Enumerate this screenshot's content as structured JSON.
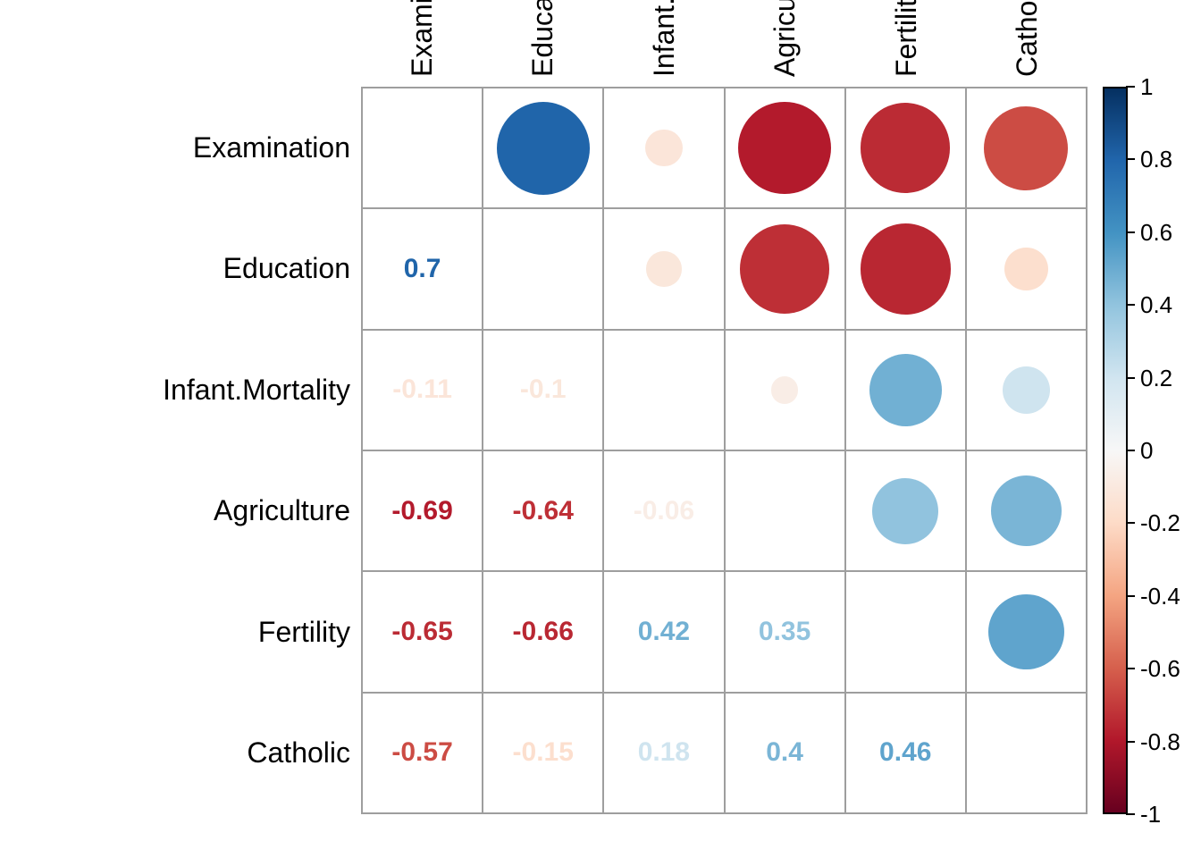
{
  "chart_data": {
    "type": "heatmap",
    "subtype": "correlation-matrix-corrplot",
    "variables": [
      "Examination",
      "Education",
      "Infant.Mortality",
      "Agriculture",
      "Fertility",
      "Catholic"
    ],
    "matrix": [
      [
        null,
        0.7,
        -0.11,
        -0.69,
        -0.65,
        -0.57
      ],
      [
        0.7,
        null,
        -0.1,
        -0.64,
        -0.66,
        -0.15
      ],
      [
        -0.11,
        -0.1,
        null,
        -0.06,
        0.42,
        0.18
      ],
      [
        -0.69,
        -0.64,
        -0.06,
        null,
        0.35,
        0.4
      ],
      [
        -0.65,
        -0.66,
        0.42,
        0.35,
        null,
        0.46
      ],
      [
        -0.57,
        -0.15,
        0.18,
        0.4,
        0.46,
        null
      ]
    ],
    "upper_triangle_style": "circles-sized-by-abs-value",
    "lower_triangle_style": "numeric-values",
    "diagonal": "blank",
    "value_range": [
      -1,
      1
    ],
    "colorbar": {
      "position": "right",
      "tick_labels": [
        "1",
        "0.8",
        "0.6",
        "0.4",
        "0.2",
        "0",
        "-0.2",
        "-0.4",
        "-0.6",
        "-0.8",
        "-1"
      ],
      "min": -1,
      "max": 1
    },
    "palette_rdbu_stops_low_to_high": [
      "#67001F",
      "#B2182B",
      "#D6604D",
      "#F4A582",
      "#FDDBC7",
      "#F7F7F7",
      "#D1E5F0",
      "#92C4DE",
      "#4393C3",
      "#2166AC",
      "#053061"
    ]
  },
  "colors": {
    "background": "#ffffff",
    "grid_line": "#9e9e9e",
    "colorbar_border": "#000000",
    "label_text": "#000000"
  }
}
